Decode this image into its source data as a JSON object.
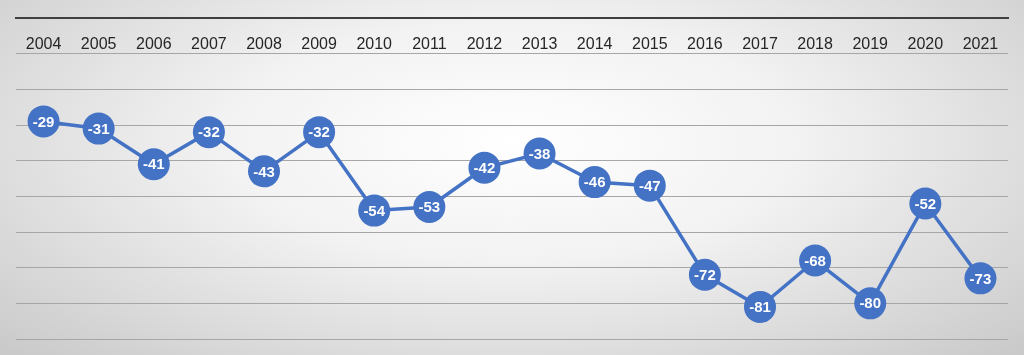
{
  "chart_data": {
    "type": "line",
    "categories": [
      "2004",
      "2005",
      "2006",
      "2007",
      "2008",
      "2009",
      "2010",
      "2011",
      "2012",
      "2013",
      "2014",
      "2015",
      "2016",
      "2017",
      "2018",
      "2019",
      "2020",
      "2021"
    ],
    "series": [
      {
        "color": "#4472c4",
        "values": [
          -29,
          -31,
          -41,
          -32,
          -43,
          -32,
          -54,
          -53,
          -42,
          -38,
          -46,
          -47,
          -72,
          -81,
          -68,
          -80,
          -52,
          -73
        ]
      }
    ],
    "ylim": [
      -90,
      0
    ],
    "yticks": [
      -90,
      -80,
      -70,
      -60,
      -50,
      -40,
      -30,
      -20,
      -10,
      0
    ],
    "grid": "y",
    "tick_labels": "x",
    "data_labels": true,
    "marker": "circle",
    "line_style": "solid",
    "legend": false
  }
}
